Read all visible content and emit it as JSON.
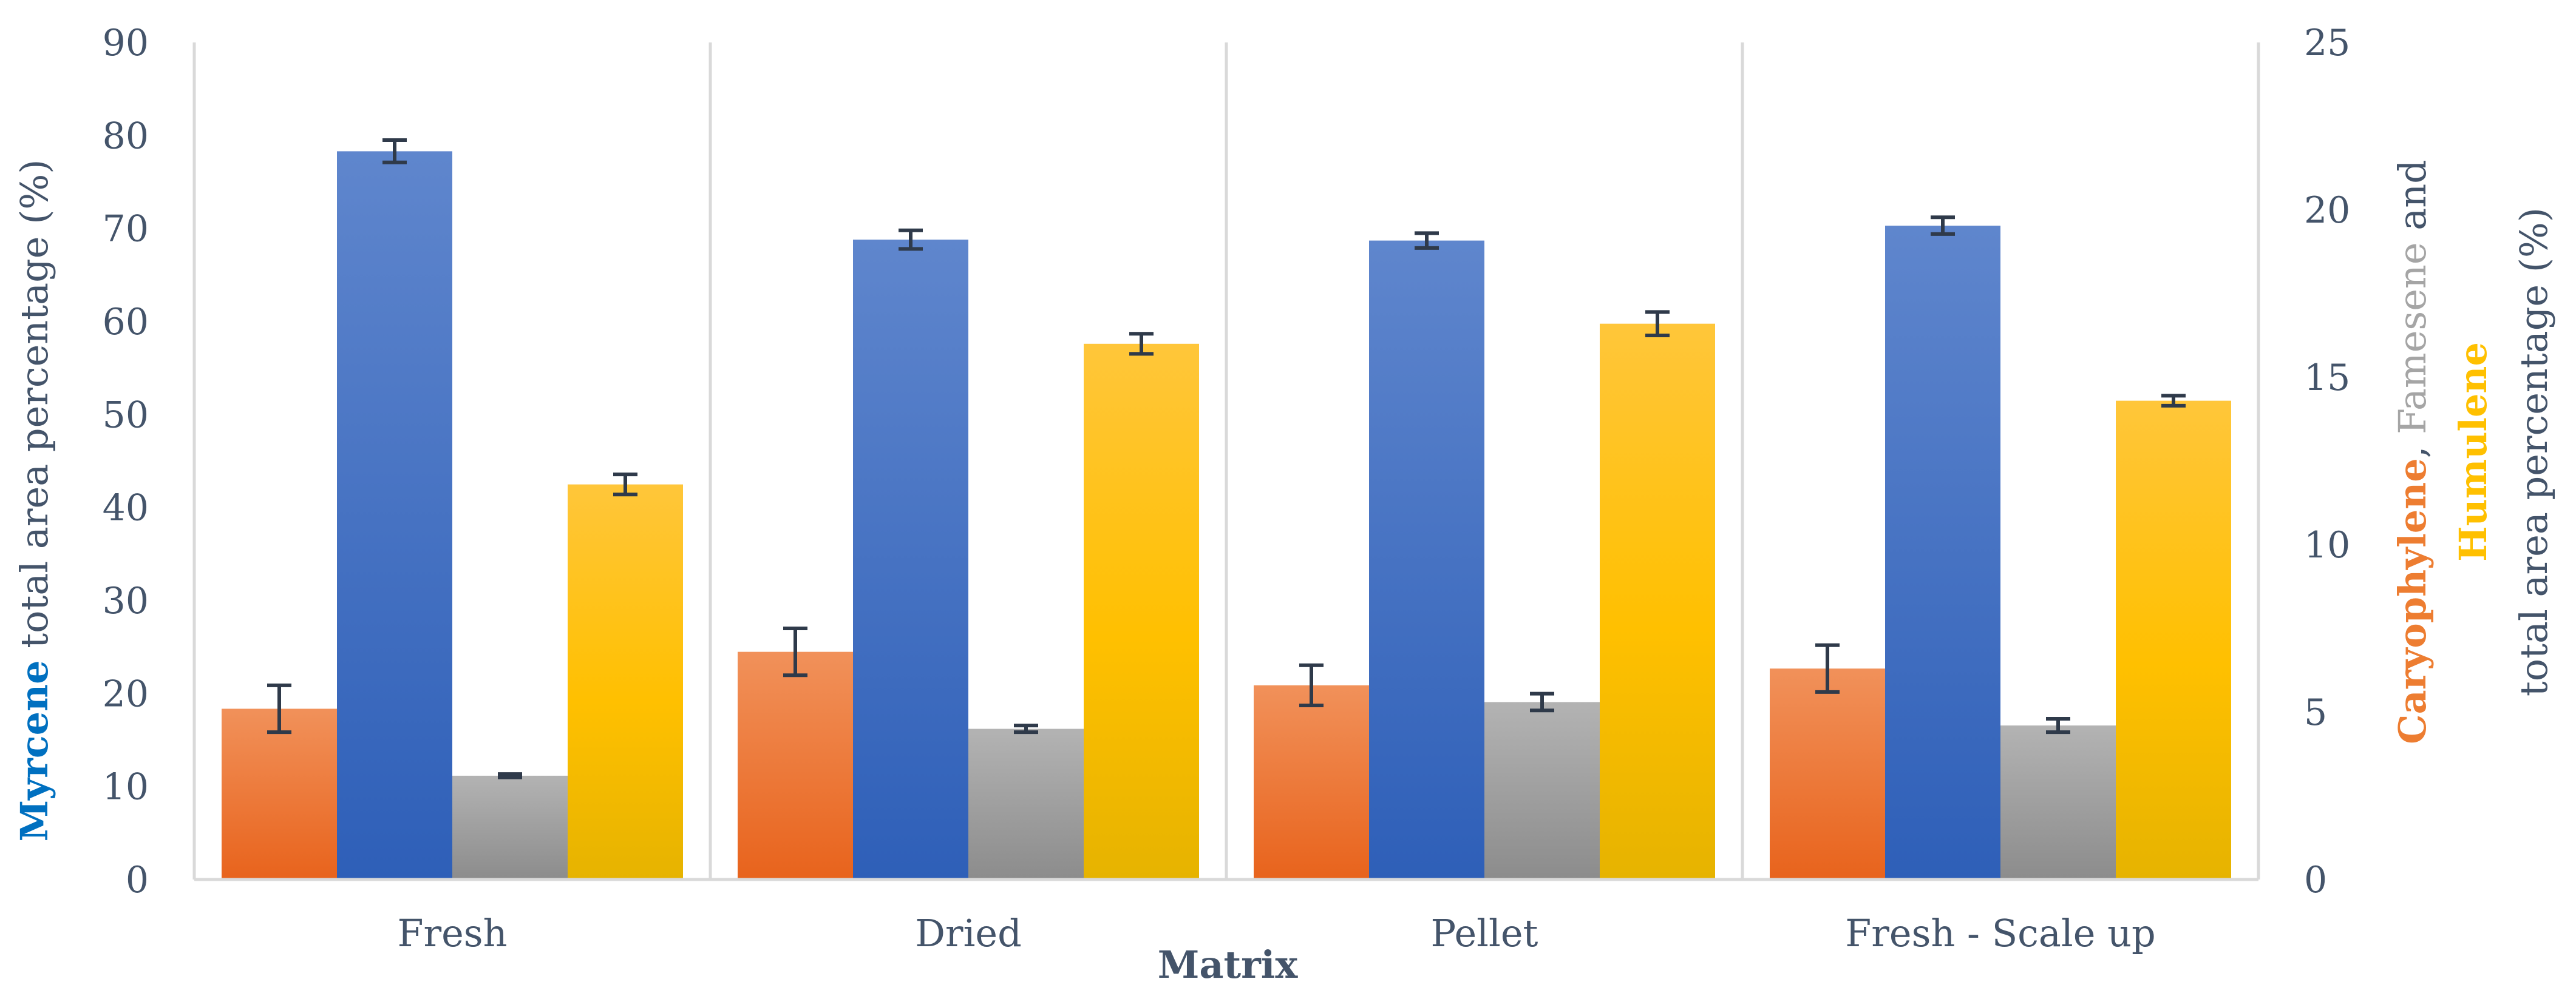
{
  "chart_data": {
    "type": "bar",
    "categories": [
      "Fresh",
      "Dried",
      "Pellet",
      "Fresh - Scale up"
    ],
    "xlabel": "Matrix",
    "series": [
      {
        "name": "Caryophylene",
        "axis": "right",
        "color": "#ed7d31",
        "values": [
          5.1,
          6.8,
          5.8,
          6.3
        ],
        "errors": [
          0.7,
          0.7,
          0.6,
          0.7
        ]
      },
      {
        "name": "Myrcene",
        "axis": "left",
        "color": "#4472c4",
        "values": [
          78.3,
          68.8,
          68.7,
          70.3
        ],
        "errors": [
          1.2,
          1.0,
          0.8,
          0.9
        ]
      },
      {
        "name": "Famesene",
        "axis": "right",
        "color": "#a5a5a5",
        "values": [
          3.1,
          4.5,
          5.3,
          4.6
        ],
        "errors": [
          0.05,
          0.1,
          0.25,
          0.2
        ]
      },
      {
        "name": "Humulene",
        "axis": "right",
        "color": "#ffc000",
        "values": [
          11.8,
          16.0,
          16.6,
          14.3
        ],
        "errors": [
          0.3,
          0.3,
          0.35,
          0.15
        ]
      }
    ],
    "y_left": {
      "ylim": [
        0,
        90
      ],
      "ticks": [
        "0",
        "10",
        "20",
        "30",
        "40",
        "50",
        "60",
        "70",
        "80",
        "90"
      ]
    },
    "y_right": {
      "ylim": [
        0,
        25
      ],
      "ticks": [
        "0",
        "5",
        "10",
        "15",
        "20",
        "25"
      ]
    },
    "ylabel_left": {
      "highlight": "Myrcene",
      "rest": " total area percentage (%)"
    },
    "ylabel_right": {
      "line1": {
        "part1": "Caryophylene",
        "sep": ", ",
        "part2": "Famesene",
        "tail": " and"
      },
      "line2": "Humulene",
      "line3": "total area percentage (%)"
    },
    "grid": "vertical category separators"
  }
}
